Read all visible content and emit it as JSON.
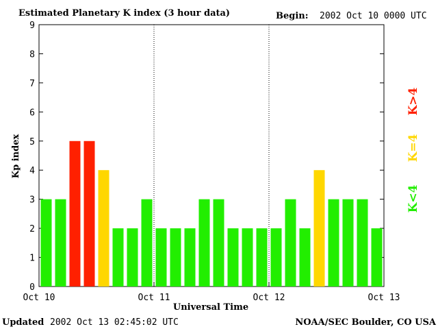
{
  "title": "Estimated Planetary K index (3 hour data)",
  "begin_label": "Begin:",
  "begin_value": "2002 Oct 10 0000 UTC",
  "updated_label": "Updated",
  "updated_value": "2002 Oct 13 02:45:02 UTC",
  "source": "NOAA/SEC Boulder, CO USA",
  "legend": [
    {
      "label": "K>4",
      "color": "#ff2000"
    },
    {
      "label": "K=4",
      "color": "#ffd700"
    },
    {
      "label": "K<4",
      "color": "#22ee00"
    }
  ],
  "chart_data": {
    "type": "bar",
    "title": "Estimated Planetary K index (3 hour data)",
    "xlabel": "Universal Time",
    "ylabel": "Kp index",
    "ylim": [
      0,
      9
    ],
    "yticks": [
      0,
      1,
      2,
      3,
      4,
      5,
      6,
      7,
      8,
      9
    ],
    "xtick_labels": [
      "Oct 10",
      "Oct 11",
      "Oct 12",
      "Oct 13"
    ],
    "interval_hours": 3,
    "values": [
      3,
      3,
      5,
      5,
      4,
      2,
      2,
      3,
      2,
      2,
      2,
      3,
      3,
      2,
      2,
      2,
      2,
      3,
      2,
      4,
      3,
      3,
      3,
      2
    ],
    "colors": {
      "low": "#22ee00",
      "equal": "#ffd700",
      "high": "#ff2000"
    },
    "day_dividers": "dotted"
  }
}
